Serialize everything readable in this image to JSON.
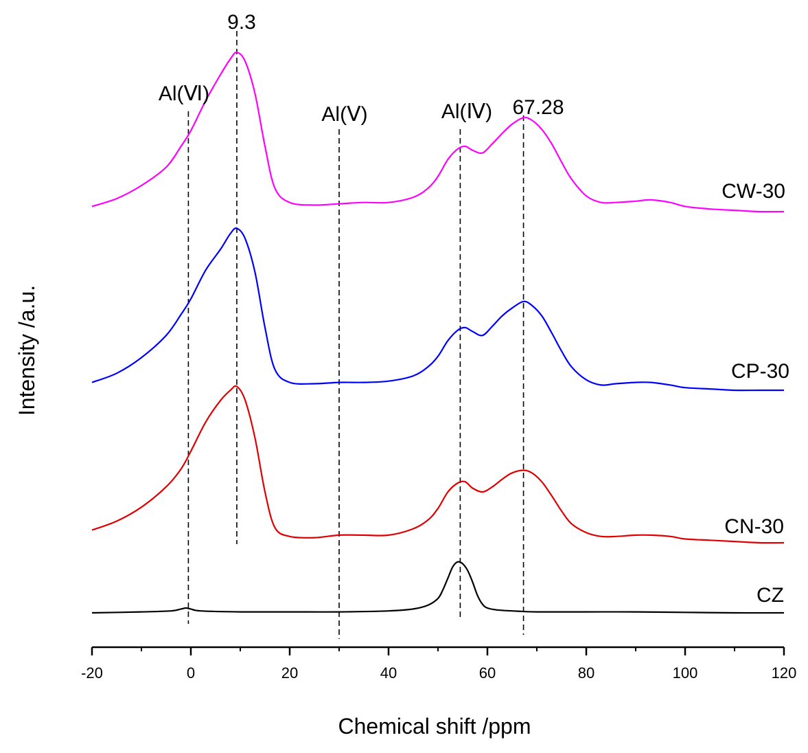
{
  "chart_data": {
    "type": "line",
    "title": "",
    "xlabel": "Chemical shift /ppm",
    "ylabel": "Intensity /a.u.",
    "xlim": [
      -20,
      120
    ],
    "xticks": [
      -20,
      0,
      20,
      40,
      60,
      80,
      100,
      120
    ],
    "y_units": "arbitrary (spectra vertically offset)",
    "grid": false,
    "series": [
      {
        "name": "CW-30",
        "color": "#ff00ff",
        "offset": 3,
        "x": [
          -20,
          -15,
          -10,
          -5,
          -2,
          0,
          3,
          6,
          8,
          9.3,
          11,
          13,
          15,
          17,
          20,
          25,
          30,
          35,
          40,
          45,
          48,
          50,
          52,
          54,
          55.5,
          57,
          59,
          61,
          63,
          65,
          67.3,
          69,
          71,
          73,
          75,
          77,
          80,
          83,
          86,
          90,
          93,
          97,
          100,
          105,
          110,
          115,
          120
        ],
        "y": [
          0.04,
          0.1,
          0.2,
          0.34,
          0.5,
          0.62,
          0.85,
          1.05,
          1.17,
          1.22,
          1.15,
          0.9,
          0.5,
          0.18,
          0.07,
          0.05,
          0.06,
          0.07,
          0.07,
          0.11,
          0.18,
          0.27,
          0.4,
          0.48,
          0.5,
          0.47,
          0.45,
          0.52,
          0.6,
          0.67,
          0.72,
          0.7,
          0.63,
          0.52,
          0.38,
          0.25,
          0.12,
          0.07,
          0.07,
          0.08,
          0.09,
          0.07,
          0.04,
          0.02,
          0.01,
          0,
          0
        ]
      },
      {
        "name": "CP-30",
        "color": "#0000ff",
        "offset": 2,
        "x": [
          -20,
          -15,
          -10,
          -5,
          -2,
          0,
          3,
          6,
          8,
          9.3,
          11,
          13,
          15,
          17,
          20,
          25,
          30,
          35,
          40,
          45,
          48,
          50,
          52,
          54,
          55.5,
          57,
          59,
          61,
          63,
          65,
          67.3,
          69,
          71,
          73,
          75,
          77,
          80,
          83,
          86,
          90,
          93,
          97,
          100,
          105,
          110,
          115,
          120
        ],
        "y": [
          0.06,
          0.13,
          0.25,
          0.42,
          0.58,
          0.7,
          0.92,
          1.08,
          1.2,
          1.24,
          1.16,
          0.9,
          0.48,
          0.16,
          0.06,
          0.05,
          0.06,
          0.06,
          0.07,
          0.11,
          0.18,
          0.26,
          0.38,
          0.46,
          0.48,
          0.45,
          0.42,
          0.49,
          0.57,
          0.63,
          0.68,
          0.65,
          0.57,
          0.44,
          0.3,
          0.18,
          0.08,
          0.04,
          0.05,
          0.06,
          0.06,
          0.04,
          0.02,
          0.01,
          0,
          0,
          0
        ]
      },
      {
        "name": "CN-30",
        "color": "#e00000",
        "offset": 1,
        "x": [
          -20,
          -15,
          -10,
          -5,
          -2,
          0,
          3,
          6,
          8,
          9.3,
          11,
          13,
          15,
          17,
          20,
          25,
          30,
          35,
          40,
          45,
          48,
          50,
          52,
          54,
          55.5,
          57,
          59,
          61,
          63,
          65,
          67.3,
          69,
          71,
          73,
          75,
          77,
          80,
          83,
          86,
          90,
          93,
          97,
          100,
          105,
          110,
          115,
          120
        ],
        "y": [
          0.1,
          0.17,
          0.28,
          0.44,
          0.58,
          0.72,
          0.95,
          1.12,
          1.2,
          1.23,
          1.12,
          0.82,
          0.4,
          0.12,
          0.05,
          0.04,
          0.06,
          0.06,
          0.06,
          0.11,
          0.18,
          0.27,
          0.4,
          0.47,
          0.48,
          0.43,
          0.4,
          0.44,
          0.5,
          0.55,
          0.57,
          0.55,
          0.48,
          0.37,
          0.25,
          0.15,
          0.08,
          0.05,
          0.05,
          0.06,
          0.06,
          0.05,
          0.03,
          0.02,
          0.01,
          0,
          0
        ]
      },
      {
        "name": "CZ",
        "color": "#000000",
        "offset": 0,
        "x": [
          -20,
          -10,
          -4,
          -2,
          -1,
          0,
          2,
          10,
          20,
          30,
          40,
          45,
          48,
          50,
          51,
          52,
          53,
          54,
          55,
          56,
          57,
          58,
          59,
          60,
          62,
          65,
          70,
          80,
          90,
          100,
          110,
          120
        ],
        "y": [
          0,
          0.01,
          0.02,
          0.04,
          0.05,
          0.04,
          0.02,
          0.01,
          0.01,
          0.01,
          0.02,
          0.04,
          0.08,
          0.15,
          0.24,
          0.36,
          0.48,
          0.53,
          0.51,
          0.44,
          0.32,
          0.18,
          0.09,
          0.05,
          0.03,
          0.02,
          0.01,
          0.01,
          0.01,
          0.005,
          0,
          0
        ]
      }
    ],
    "reference_lines": [
      {
        "label": "Al(Ⅵ)",
        "x": -0.5
      },
      {
        "label": "9.3",
        "x": 9.3
      },
      {
        "label": "Al(Ⅴ)",
        "x": 30
      },
      {
        "label": "Al(Ⅳ)",
        "x": 54.5
      },
      {
        "label": "67.28",
        "x": 67.3
      }
    ]
  }
}
